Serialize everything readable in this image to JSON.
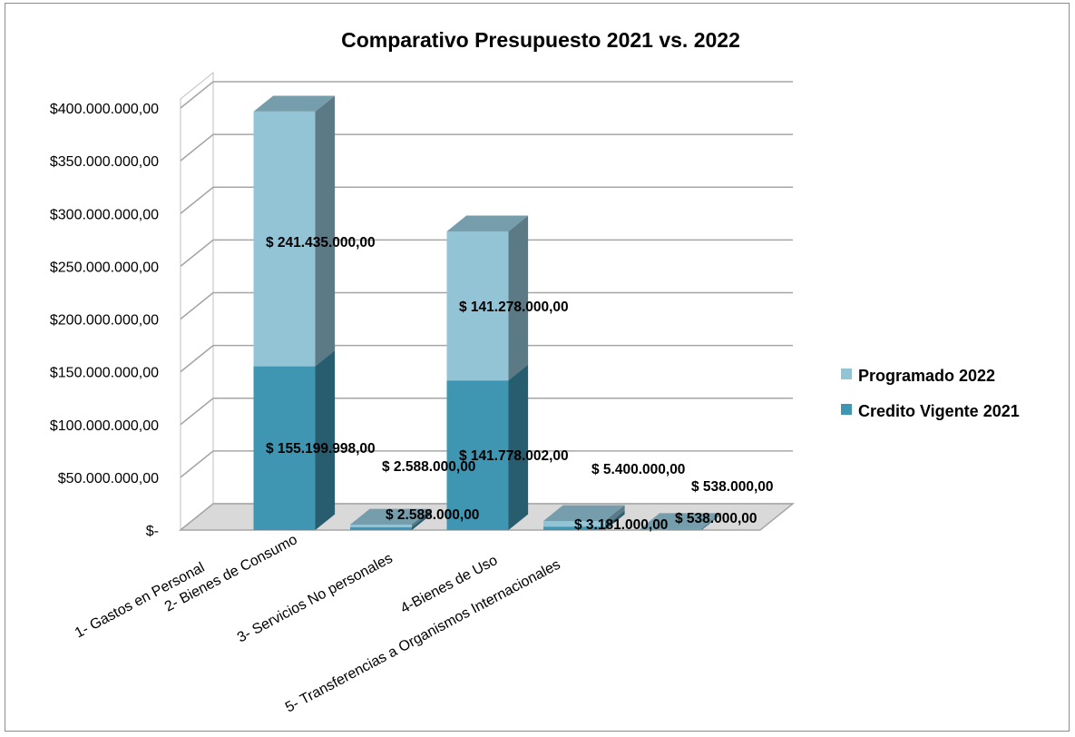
{
  "chart_data": {
    "type": "bar",
    "stacked": true,
    "three_d": true,
    "title": "Comparativo Presupuesto  2021 vs. 2022",
    "categories": [
      "1- Gastos en Personal",
      "2- Bienes de Consumo",
      "3- Servicios No personales",
      "4-Bienes de Uso",
      "5- Transferencias a Organismos Internacionales"
    ],
    "series": [
      {
        "name": "Credito Vigente  2021",
        "color": "#3f96b2",
        "values": [
          155199998,
          2588000,
          141778002,
          3181000,
          538000
        ],
        "labels": [
          "$ 155.199.998,00",
          "$ 2.588.000,00",
          "$ 141.778.002,00",
          "$ 3.181.000,00",
          "$ 538.000,00"
        ]
      },
      {
        "name": "Programado 2022",
        "color": "#93c4d6",
        "values": [
          241435000,
          2588000,
          141278000,
          5400000,
          538000
        ],
        "labels": [
          "$ 241.435.000,00",
          "$ 2.588.000,00",
          "$ 141.278.000,00",
          "$ 5.400.000,00",
          "$ 538.000,00"
        ]
      }
    ],
    "bar_slots": [
      1,
      2,
      3,
      4,
      5
    ],
    "ylim": [
      0,
      400000000
    ],
    "yticks": [
      {
        "value": 0,
        "label": "$-"
      },
      {
        "value": 50000000,
        "label": "$50.000.000,00"
      },
      {
        "value": 100000000,
        "label": "$100.000.000,00"
      },
      {
        "value": 150000000,
        "label": "$150.000.000,00"
      },
      {
        "value": 200000000,
        "label": "$200.000.000,00"
      },
      {
        "value": 250000000,
        "label": "$250.000.000,00"
      },
      {
        "value": 300000000,
        "label": "$300.000.000,00"
      },
      {
        "value": 350000000,
        "label": "$350.000.000,00"
      },
      {
        "value": 400000000,
        "label": "$400.000.000,00"
      }
    ],
    "grid": true,
    "legend_position": "right"
  }
}
